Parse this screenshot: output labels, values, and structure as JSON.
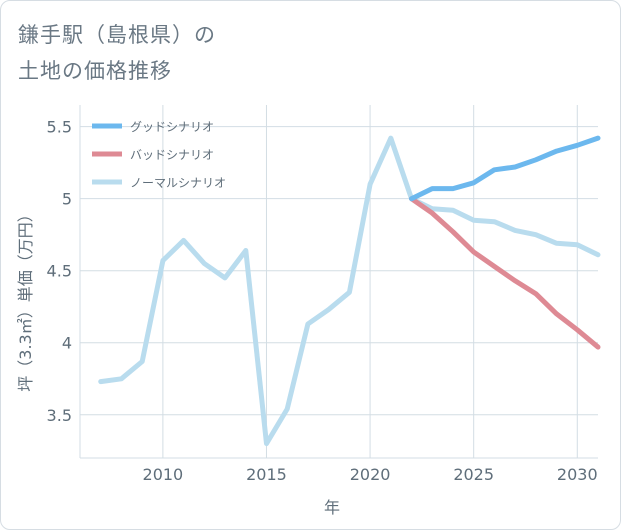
{
  "page_title": {
    "line1": "鎌手駅（島根県）の",
    "line2": "土地の価格推移"
  },
  "colors": {
    "good": "#6cb8ee",
    "bad": "#de8a94",
    "normal": "#b9dcee",
    "grid": "#d3dde4",
    "text": "#5f6e7a"
  },
  "chart_data": {
    "type": "line",
    "title": "鎌手駅（島根県）の土地の価格推移",
    "xlabel": "年",
    "ylabel": "坪（3.3㎡）単価（万円）",
    "xlim": [
      2006,
      2031
    ],
    "ylim": [
      3.2,
      5.65
    ],
    "x_ticks": [
      2010,
      2015,
      2020,
      2025,
      2030
    ],
    "y_ticks": [
      3.5,
      4,
      4.5,
      5,
      5.5
    ],
    "x_tick_labels": [
      "2010",
      "2015",
      "2020",
      "2025",
      "2030"
    ],
    "y_tick_labels": [
      "3.5",
      "4",
      "4.5",
      "5",
      "5.5"
    ],
    "legend_position": "top-left",
    "series": [
      {
        "key": "good",
        "name": "グッドシナリオ",
        "x": [
          2022,
          2023,
          2024,
          2025,
          2026,
          2027,
          2028,
          2029,
          2030,
          2031
        ],
        "values": [
          5.0,
          5.07,
          5.07,
          5.11,
          5.2,
          5.22,
          5.27,
          5.33,
          5.37,
          5.42
        ]
      },
      {
        "key": "bad",
        "name": "バッドシナリオ",
        "x": [
          2022,
          2023,
          2024,
          2025,
          2026,
          2027,
          2028,
          2029,
          2030,
          2031
        ],
        "values": [
          5.0,
          4.9,
          4.77,
          4.63,
          4.53,
          4.43,
          4.34,
          4.2,
          4.09,
          3.97
        ]
      },
      {
        "key": "normal",
        "name": "ノーマルシナリオ",
        "x": [
          2007,
          2008,
          2009,
          2010,
          2011,
          2012,
          2013,
          2014,
          2015,
          2016,
          2017,
          2018,
          2019,
          2020,
          2021,
          2022,
          2023,
          2024,
          2025,
          2026,
          2027,
          2028,
          2029,
          2030,
          2031
        ],
        "values": [
          3.73,
          3.75,
          3.87,
          4.57,
          4.71,
          4.55,
          4.45,
          4.64,
          3.3,
          3.54,
          4.13,
          4.23,
          4.35,
          5.1,
          5.42,
          5.0,
          4.93,
          4.92,
          4.85,
          4.84,
          4.78,
          4.75,
          4.69,
          4.68,
          4.61
        ]
      }
    ]
  }
}
